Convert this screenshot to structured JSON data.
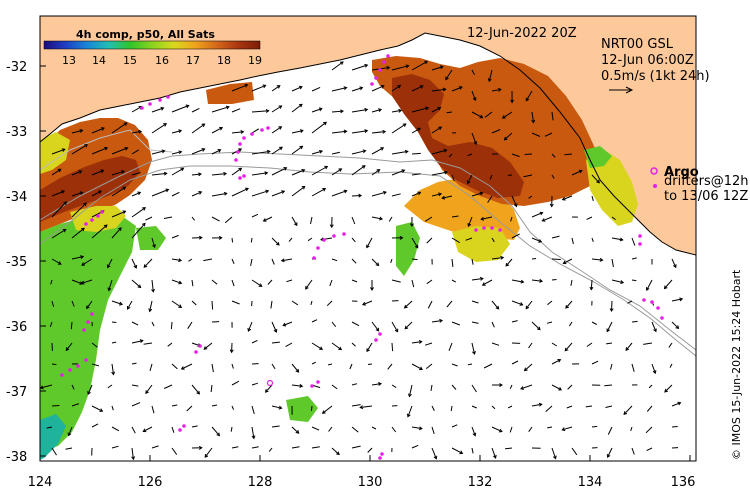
{
  "colorbar": {
    "title": "4h comp, p50, All Sats",
    "ticks": [
      "13",
      "14",
      "15",
      "16",
      "17",
      "18",
      "19"
    ],
    "stops": [
      "#1c0a7a",
      "#1e3fc4",
      "#1a86d6",
      "#22bfb3",
      "#2fc42a",
      "#8bd321",
      "#d8d91e",
      "#f0a41c",
      "#d3681a",
      "#a8360f",
      "#7d1c08"
    ]
  },
  "date_label": "12-Jun-2022 20Z",
  "current_info": {
    "line1": "NRT00 GSL",
    "line2": "12-Jun 06:00Z",
    "line3": "0.5m/s (1kt 24h)"
  },
  "argo_legend": {
    "label": "Argo",
    "line2": "drifters@12h",
    "line3": "to 13/06 12Z",
    "color": "#e81fe6"
  },
  "credit": "© IMOS 15-Jun-2022 15:24 Hobart",
  "y_ticks": [
    "-32",
    "-33",
    "-34",
    "-35",
    "-36",
    "-37",
    "-38"
  ],
  "x_ticks": [
    "124",
    "126",
    "128",
    "130",
    "132",
    "134",
    "136"
  ],
  "colors": {
    "land": "#fdc99b",
    "warm": "#c8590f",
    "hot": "#9c3008",
    "mid": "#f0a31d",
    "yellow": "#d9d51f",
    "green": "#5fc82a",
    "teal": "#1fb39b",
    "coast": "#000000"
  }
}
